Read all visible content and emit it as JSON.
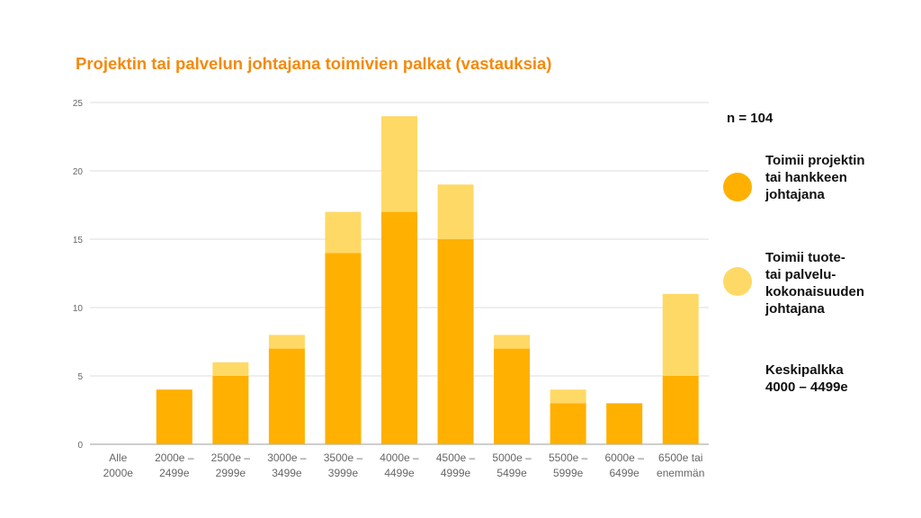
{
  "title": "Projektin tai palvelun johtajana toimivien palkat (vastauksia)",
  "n_label": "n = 104",
  "legend": [
    {
      "lines": [
        "Toimii projektin",
        "tai hankkeen",
        "johtajana"
      ],
      "color": "#ffb000"
    },
    {
      "lines": [
        "Toimii tuote-",
        "tai palvelu-",
        "kokonaisuuden",
        "johtajana"
      ],
      "color": "#ffd966"
    }
  ],
  "note": {
    "lines": [
      "Keskipalkka",
      "4000 – 4499e"
    ]
  },
  "chart_data": {
    "type": "bar",
    "stacked": true,
    "categories": [
      [
        "Alle",
        "2000e"
      ],
      [
        "2000e –",
        "2499e"
      ],
      [
        "2500e –",
        "2999e"
      ],
      [
        "3000e –",
        "3499e"
      ],
      [
        "3500e –",
        "3999e"
      ],
      [
        "4000e –",
        "4499e"
      ],
      [
        "4500e –",
        "4999e"
      ],
      [
        "5000e –",
        "5499e"
      ],
      [
        "5500e –",
        "5999e"
      ],
      [
        "6000e –",
        "6499e"
      ],
      [
        "6500e tai",
        "enemmän"
      ]
    ],
    "series": [
      {
        "name": "Toimii projektin tai hankkeen johtajana",
        "color": "#ffb000",
        "values": [
          0,
          4,
          5,
          7,
          14,
          17,
          15,
          7,
          3,
          3,
          5
        ]
      },
      {
        "name": "Toimii tuote- tai palvelu-kokonaisuuden johtajana",
        "color": "#ffd966",
        "values": [
          0,
          0,
          1,
          1,
          3,
          7,
          4,
          1,
          1,
          0,
          6
        ]
      }
    ],
    "ylim": [
      0,
      25
    ],
    "yticks": [
      0,
      5,
      10,
      15,
      20,
      25
    ],
    "grid": true,
    "legend_position": "right"
  }
}
